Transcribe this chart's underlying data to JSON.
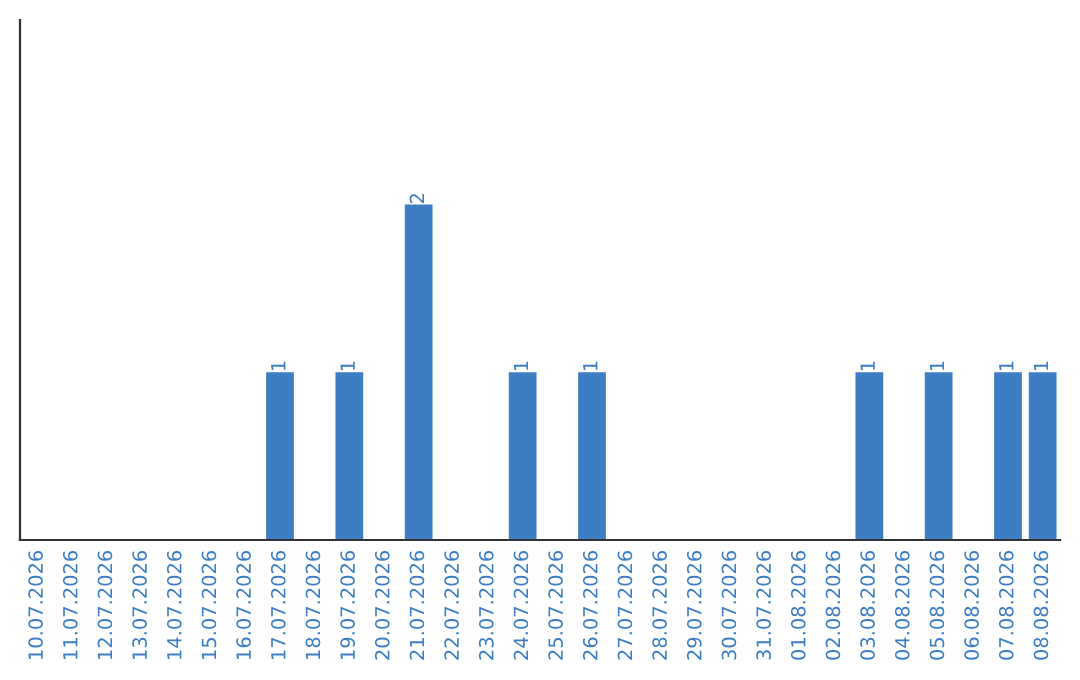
{
  "chart_data": {
    "type": "bar",
    "categories": [
      "10.07.2026",
      "11.07.2026",
      "12.07.2026",
      "13.07.2026",
      "14.07.2026",
      "15.07.2026",
      "16.07.2026",
      "17.07.2026",
      "18.07.2026",
      "19.07.2026",
      "20.07.2026",
      "21.07.2026",
      "22.07.2026",
      "23.07.2026",
      "24.07.2026",
      "25.07.2026",
      "26.07.2026",
      "27.07.2026",
      "28.07.2026",
      "29.07.2026",
      "30.07.2026",
      "31.07.2026",
      "01.08.2026",
      "02.08.2026",
      "03.08.2026",
      "04.08.2026",
      "05.08.2026",
      "06.08.2026",
      "07.08.2026",
      "08.08.2026"
    ],
    "values": [
      0,
      0,
      0,
      0,
      0,
      0,
      0,
      1,
      0,
      1,
      0,
      2,
      0,
      0,
      1,
      0,
      1,
      0,
      0,
      0,
      0,
      0,
      0,
      0,
      1,
      0,
      1,
      0,
      1,
      1
    ],
    "value_labels": [
      null,
      null,
      null,
      null,
      null,
      null,
      null,
      "1",
      null,
      "1",
      null,
      "2",
      null,
      null,
      "1",
      null,
      "1",
      null,
      null,
      null,
      null,
      null,
      null,
      null,
      "1",
      null,
      "1",
      null,
      "1",
      "1"
    ],
    "color": "#3c7dc3",
    "ylim": [
      0,
      3.1
    ],
    "tick_labels": "x",
    "grid": false,
    "legend": false
  }
}
